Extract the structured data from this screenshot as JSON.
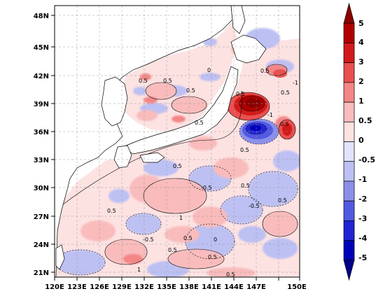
{
  "map": {
    "lon_ticks": [
      "120E",
      "123E",
      "126E",
      "129E",
      "132E",
      "135E",
      "138E",
      "141E",
      "144E",
      "147E",
      "150E"
    ],
    "lat_ticks": [
      "21N",
      "24N",
      "27N",
      "30N",
      "33N",
      "36N",
      "39N",
      "42N",
      "45N",
      "48N"
    ],
    "contour_labels": [
      "0.5",
      "0.5",
      "0.5",
      "0",
      "0.5",
      "0.5",
      "-1",
      "0.5",
      "0.5",
      "-0.5",
      "1",
      "0.5",
      "0.5",
      "0.5",
      "-0.5",
      "0.5",
      "0.5",
      "0.5",
      "-0.5",
      "1",
      "0.5",
      "0.5",
      "0.5",
      "-1",
      "0",
      "0.5"
    ],
    "colorbar": {
      "labels": [
        "5",
        "4",
        "3",
        "2",
        "1",
        "0.5",
        "0",
        "-0.5",
        "-1",
        "-2",
        "-3",
        "-4",
        "-5"
      ],
      "colors": [
        "#8b0000",
        "#b00000",
        "#d21a1a",
        "#ea4f4f",
        "#f38686",
        "#f9bbbb",
        "#fde2e2",
        "#e2e4fb",
        "#bcc0f3",
        "#8a90ea",
        "#5359e0",
        "#2024d2",
        "#0000b8",
        "#00008b"
      ]
    }
  }
}
